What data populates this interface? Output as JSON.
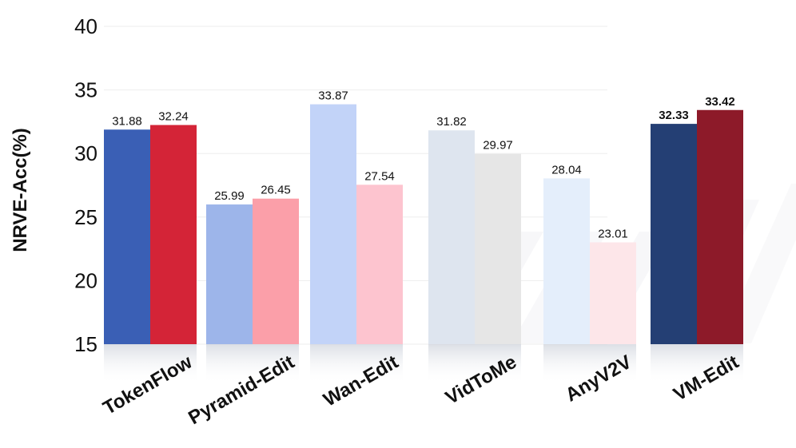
{
  "chart_data": {
    "type": "bar",
    "title": "",
    "xlabel": "",
    "ylabel": "NRVE-Acc(%)",
    "ylim": [
      15,
      40
    ],
    "yticks": [
      15,
      20,
      25,
      30,
      35,
      40
    ],
    "grid": false,
    "categories": [
      "TokenFlow",
      "Pyramid-Edit",
      "Wan-Edit",
      "VidToMe",
      "AnyV2V",
      "VM-Edit"
    ],
    "series": [
      {
        "values": [
          31.88,
          25.99,
          33.87,
          31.82,
          28.04,
          32.33
        ],
        "colors": [
          "#3a5fb5",
          "#9db5ea",
          "#c2d3f8",
          "#dee5ef",
          "#e4eefb",
          "#243f74"
        ]
      },
      {
        "values": [
          32.24,
          26.45,
          27.54,
          29.97,
          23.01,
          33.42
        ],
        "colors": [
          "#d42437",
          "#fb9fa9",
          "#fdc4cf",
          "#e6e6e6",
          "#fde6e9",
          "#8d1a29"
        ]
      }
    ],
    "label_bold_categories": [
      "VM-Edit"
    ]
  }
}
